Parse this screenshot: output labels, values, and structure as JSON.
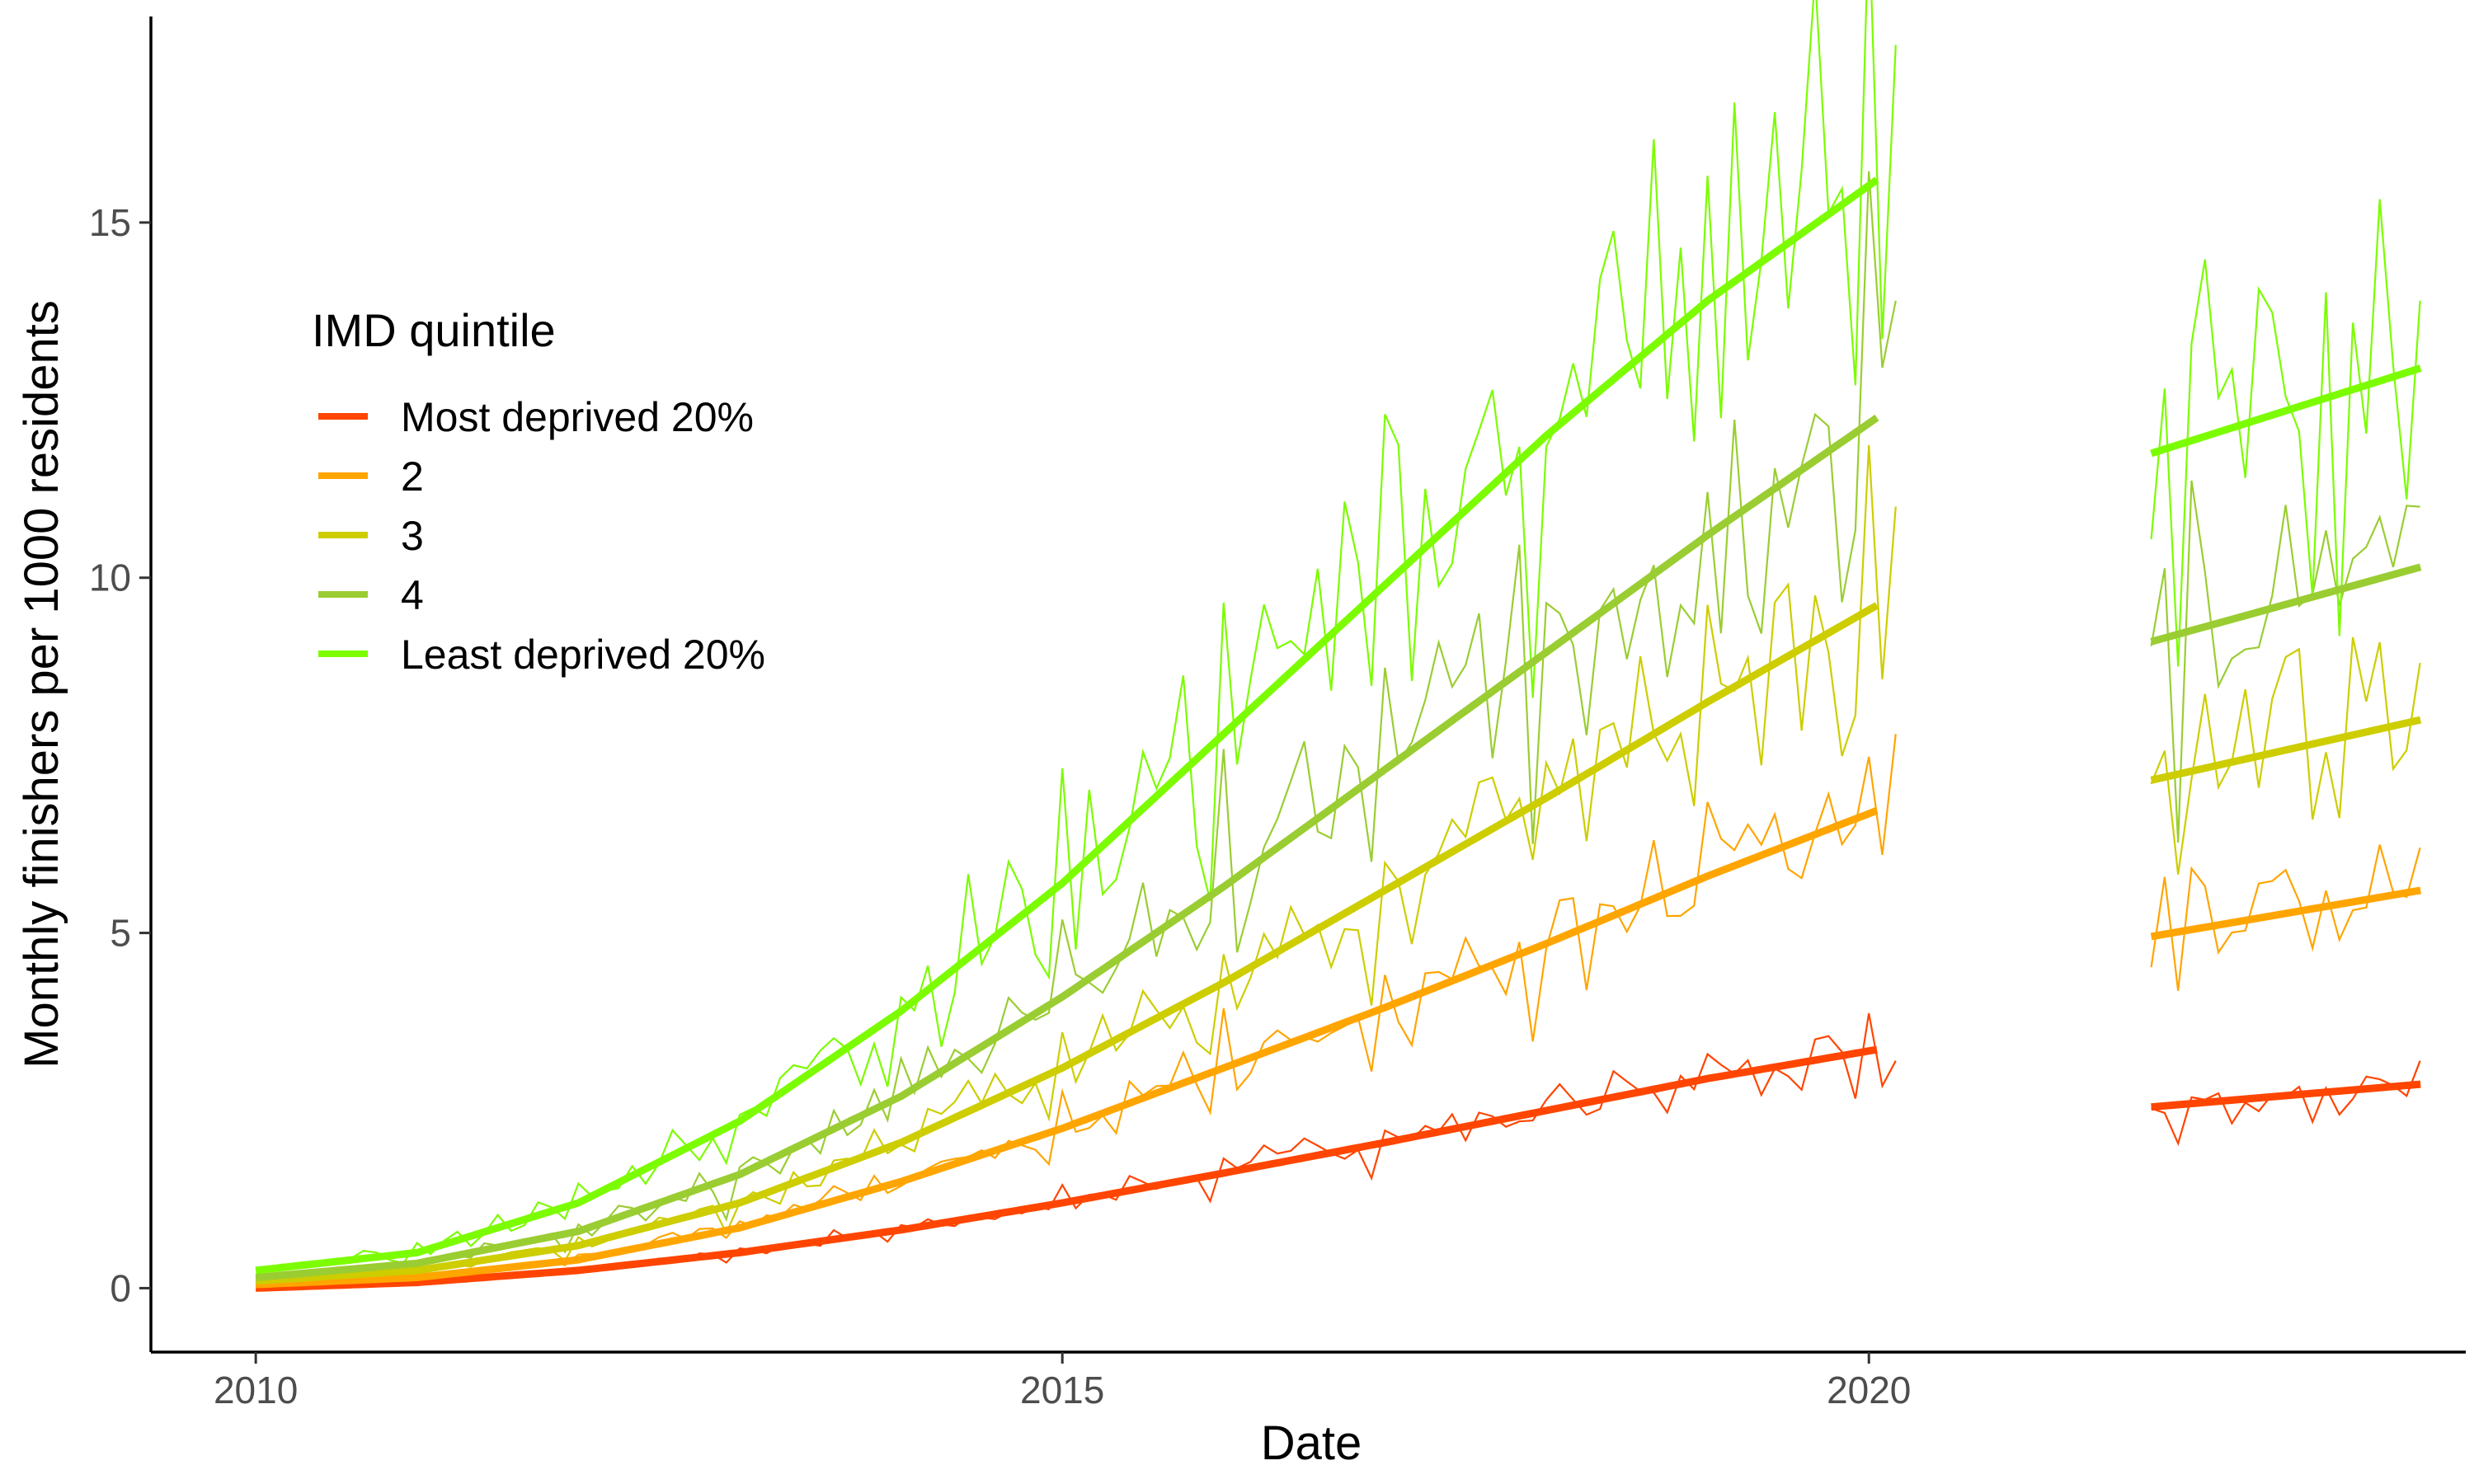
{
  "chart_data": {
    "type": "line",
    "xlabel": "Date",
    "ylabel": "Monthly finishers per 1000 residents",
    "xlim": [
      2009.35,
      2023.7
    ],
    "ylim": [
      -0.9,
      17.9
    ],
    "x_ticks": [
      2010,
      2015,
      2020
    ],
    "x_tick_labels": [
      "2010",
      "2015",
      "2020"
    ],
    "y_ticks": [
      0,
      5,
      10,
      15
    ],
    "y_tick_labels": [
      "0",
      "5",
      "10",
      "15"
    ],
    "grid": false,
    "legend": {
      "title": "IMD quintile",
      "position": "top-left"
    },
    "gap": [
      2020.17,
      2021.75
    ],
    "series": [
      {
        "name": "Most deprived 20%",
        "color": "#FF4500",
        "trend_period1": [
          [
            2010.0,
            0.0
          ],
          [
            2011.0,
            0.08
          ],
          [
            2012.0,
            0.25
          ],
          [
            2013.0,
            0.5
          ],
          [
            2014.0,
            0.82
          ],
          [
            2015.0,
            1.2
          ],
          [
            2016.0,
            1.62
          ],
          [
            2017.0,
            2.05
          ],
          [
            2018.0,
            2.5
          ],
          [
            2019.0,
            2.95
          ],
          [
            2020.08,
            3.37
          ]
        ],
        "trend_period2": [
          [
            2021.75,
            2.55
          ],
          [
            2023.42,
            2.87
          ]
        ],
        "monthly_end_values": [
          3.2,
          1.8,
          3.2
        ]
      },
      {
        "name": "2",
        "color": "#FFA500",
        "trend_period1": [
          [
            2010.0,
            0.05
          ],
          [
            2011.0,
            0.15
          ],
          [
            2012.0,
            0.4
          ],
          [
            2013.0,
            0.85
          ],
          [
            2014.0,
            1.5
          ],
          [
            2015.0,
            2.25
          ],
          [
            2016.0,
            3.1
          ],
          [
            2017.0,
            3.95
          ],
          [
            2018.0,
            4.85
          ],
          [
            2019.0,
            5.8
          ],
          [
            2020.08,
            6.75
          ]
        ],
        "trend_period2": [
          [
            2021.75,
            4.95
          ],
          [
            2023.42,
            5.6
          ]
        ],
        "monthly_end_values": [
          7.8,
          3.6,
          6.2
        ]
      },
      {
        "name": "3",
        "color": "#CDCD00",
        "trend_period1": [
          [
            2010.0,
            0.1
          ],
          [
            2011.0,
            0.25
          ],
          [
            2012.0,
            0.6
          ],
          [
            2013.0,
            1.2
          ],
          [
            2014.0,
            2.05
          ],
          [
            2015.0,
            3.1
          ],
          [
            2016.0,
            4.3
          ],
          [
            2017.0,
            5.6
          ],
          [
            2018.0,
            6.9
          ],
          [
            2019.0,
            8.25
          ],
          [
            2020.08,
            9.65
          ]
        ],
        "trend_period2": [
          [
            2021.75,
            7.15
          ],
          [
            2023.42,
            8.0
          ]
        ],
        "monthly_end_values": [
          11.0,
          5.2,
          8.8
        ]
      },
      {
        "name": "4",
        "color": "#9ACD32",
        "trend_period1": [
          [
            2010.0,
            0.15
          ],
          [
            2011.0,
            0.35
          ],
          [
            2012.0,
            0.8
          ],
          [
            2013.0,
            1.6
          ],
          [
            2014.0,
            2.7
          ],
          [
            2015.0,
            4.1
          ],
          [
            2016.0,
            5.65
          ],
          [
            2017.0,
            7.3
          ],
          [
            2018.0,
            8.95
          ],
          [
            2019.0,
            10.6
          ],
          [
            2020.08,
            12.3
          ]
        ],
        "trend_period2": [
          [
            2021.75,
            9.1
          ],
          [
            2023.42,
            10.15
          ]
        ],
        "monthly_end_values": [
          13.9,
          7.1,
          11.0
        ]
      },
      {
        "name": "Least deprived 20%",
        "color": "#7CFC00",
        "trend_period1": [
          [
            2010.0,
            0.25
          ],
          [
            2011.0,
            0.5
          ],
          [
            2012.0,
            1.2
          ],
          [
            2013.0,
            2.35
          ],
          [
            2014.0,
            3.9
          ],
          [
            2015.0,
            5.7
          ],
          [
            2016.0,
            7.8
          ],
          [
            2017.0,
            9.9
          ],
          [
            2018.0,
            12.0
          ],
          [
            2019.0,
            13.9
          ],
          [
            2020.08,
            15.65
          ]
        ],
        "trend_period2": [
          [
            2021.75,
            11.75
          ],
          [
            2023.42,
            12.95
          ]
        ],
        "monthly_end_values": [
          17.5,
          9.0,
          13.9
        ]
      }
    ]
  }
}
